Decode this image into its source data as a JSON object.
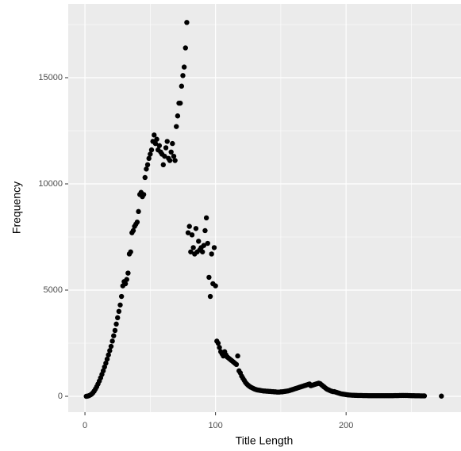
{
  "chart_data": {
    "type": "scatter",
    "x_label": "Title Length",
    "y_label": "Frequency",
    "color": "#000000",
    "background": "#ebebeb",
    "grid": true,
    "xlim": [
      -12.8,
      288
    ],
    "ylim": [
      -746,
      18470
    ],
    "xticks": [
      0,
      100,
      200
    ],
    "yticks": [
      0,
      5000,
      10000,
      15000
    ],
    "minor_xticks": [
      50,
      150,
      250
    ],
    "minor_yticks": [
      2500,
      7500,
      12500,
      17500
    ],
    "x": [
      1,
      2,
      3,
      4,
      5,
      6,
      7,
      8,
      9,
      10,
      11,
      12,
      13,
      14,
      15,
      16,
      17,
      18,
      19,
      20,
      21,
      22,
      23,
      24,
      25,
      26,
      27,
      28,
      29,
      30,
      31,
      32,
      33,
      34,
      35,
      36,
      37,
      38,
      39,
      40,
      41,
      42,
      43,
      44,
      45,
      46,
      47,
      48,
      49,
      50,
      51,
      52,
      53,
      54,
      55,
      56,
      57,
      58,
      59,
      60,
      61,
      62,
      63,
      64,
      65,
      66,
      67,
      68,
      69,
      70,
      71,
      72,
      73,
      74,
      75,
      76,
      77,
      78,
      79,
      80,
      81,
      82,
      83,
      84,
      85,
      86,
      87,
      88,
      89,
      90,
      91,
      92,
      93,
      94,
      95,
      96,
      97,
      98,
      99,
      100,
      101,
      102,
      103,
      104,
      105,
      106,
      107,
      108,
      109,
      110,
      111,
      112,
      113,
      114,
      115,
      116,
      117,
      118,
      119,
      120,
      121,
      122,
      123,
      124,
      125,
      126,
      127,
      128,
      129,
      130,
      131,
      132,
      133,
      134,
      135,
      136,
      137,
      138,
      139,
      140,
      141,
      142,
      143,
      144,
      145,
      146,
      147,
      148,
      149,
      150,
      151,
      152,
      153,
      154,
      155,
      156,
      157,
      158,
      159,
      160,
      161,
      162,
      163,
      164,
      165,
      166,
      167,
      168,
      169,
      170,
      171,
      172,
      173,
      174,
      175,
      176,
      177,
      178,
      179,
      180,
      181,
      182,
      183,
      184,
      185,
      186,
      187,
      188,
      189,
      190,
      191,
      192,
      193,
      194,
      195,
      196,
      197,
      198,
      199,
      200,
      201,
      202,
      203,
      204,
      205,
      206,
      207,
      208,
      209,
      210,
      211,
      212,
      213,
      214,
      215,
      216,
      217,
      218,
      219,
      220,
      221,
      222,
      223,
      224,
      225,
      226,
      227,
      228,
      229,
      230,
      231,
      232,
      233,
      234,
      235,
      236,
      237,
      238,
      239,
      240,
      241,
      242,
      243,
      244,
      245,
      246,
      247,
      248,
      249,
      250,
      251,
      252,
      253,
      254,
      255,
      256,
      257,
      258,
      259,
      260,
      273
    ],
    "values": [
      0,
      10,
      30,
      60,
      100,
      160,
      240,
      340,
      450,
      580,
      720,
      870,
      1030,
      1200,
      1380,
      1560,
      1750,
      1950,
      2150,
      2350,
      2600,
      2850,
      3100,
      3400,
      3700,
      4000,
      4300,
      4700,
      5200,
      5400,
      5300,
      5500,
      5800,
      6700,
      6800,
      7700,
      7800,
      8000,
      8100,
      8200,
      8700,
      9500,
      9600,
      9400,
      9500,
      10300,
      10700,
      10900,
      11200,
      11400,
      11600,
      12000,
      12300,
      11900,
      12100,
      11600,
      11800,
      11500,
      11400,
      10900,
      11300,
      11700,
      12000,
      11200,
      11100,
      11500,
      11900,
      11300,
      11100,
      12700,
      13200,
      13800,
      13800,
      14600,
      15100,
      15500,
      16400,
      17600,
      7700,
      8000,
      6800,
      7600,
      7000,
      6700,
      7900,
      6800,
      7300,
      6900,
      7000,
      6800,
      7100,
      7800,
      8400,
      7200,
      5600,
      4700,
      6700,
      5300,
      7000,
      5200,
      2600,
      2500,
      2300,
      2100,
      2000,
      1900,
      2100,
      1950,
      1850,
      1800,
      1750,
      1700,
      1650,
      1600,
      1550,
      1500,
      1900,
      1200,
      1100,
      950,
      850,
      750,
      650,
      580,
      520,
      470,
      430,
      400,
      370,
      340,
      320,
      300,
      290,
      280,
      270,
      260,
      250,
      250,
      240,
      240,
      230,
      230,
      220,
      220,
      210,
      210,
      200,
      200,
      200,
      210,
      210,
      220,
      230,
      240,
      250,
      260,
      280,
      300,
      320,
      340,
      360,
      380,
      400,
      420,
      440,
      460,
      480,
      500,
      520,
      540,
      560,
      580,
      500,
      520,
      540,
      560,
      580,
      600,
      620,
      600,
      550,
      500,
      450,
      400,
      350,
      320,
      290,
      260,
      240,
      220,
      220,
      200,
      180,
      160,
      140,
      120,
      110,
      100,
      90,
      80,
      70,
      65,
      60,
      55,
      50,
      50,
      45,
      45,
      40,
      40,
      40,
      40,
      35,
      35,
      35,
      35,
      30,
      30,
      30,
      30,
      30,
      30,
      30,
      30,
      30,
      30,
      30,
      30,
      30,
      30,
      30,
      30,
      30,
      30,
      30,
      30,
      35,
      35,
      35,
      35,
      40,
      40,
      40,
      40,
      40,
      40,
      40,
      35,
      35,
      30,
      30,
      30,
      25,
      25,
      25,
      25,
      20,
      20,
      20,
      20,
      10
    ]
  }
}
